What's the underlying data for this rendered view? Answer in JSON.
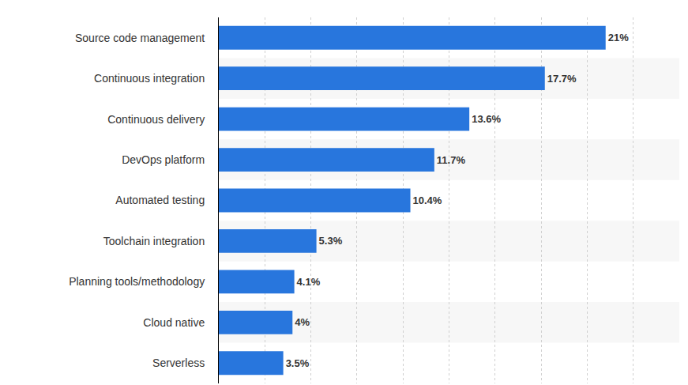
{
  "chart_data": {
    "type": "bar",
    "orientation": "horizontal",
    "categories": [
      "Source code management",
      "Continuous integration",
      "Continuous delivery",
      "DevOps platform",
      "Automated testing",
      "Toolchain integration",
      "Planning tools/methodology",
      "Cloud native",
      "Serverless"
    ],
    "values": [
      21,
      17.7,
      13.6,
      11.7,
      10.4,
      5.3,
      4.1,
      4,
      3.5
    ],
    "value_labels": [
      "21%",
      "17.7%",
      "13.6%",
      "11.7%",
      "10.4%",
      "5.3%",
      "4.1%",
      "4%",
      "3.5%"
    ],
    "color": "#2876dd",
    "xlim": [
      0,
      25
    ],
    "xticks": [
      0,
      2.5,
      5,
      7.5,
      10,
      12.5,
      15,
      17.5,
      20,
      22.5,
      25
    ],
    "grid": true,
    "data_labels": true,
    "tick_labels": "y"
  }
}
